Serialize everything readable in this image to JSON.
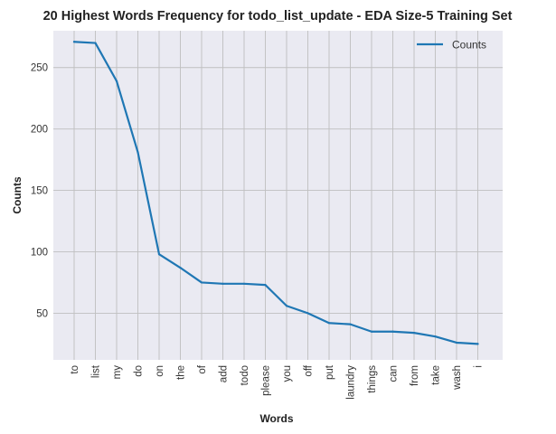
{
  "chart_data": {
    "type": "line",
    "title": "20 Highest Words Frequency for todo_list_update - EDA Size-5 Training Set",
    "xlabel": "Words",
    "ylabel": "Counts",
    "categories": [
      "to",
      "list",
      "my",
      "do",
      "on",
      "the",
      "of",
      "add",
      "todo",
      "please",
      "you",
      "off",
      "put",
      "laundry",
      "things",
      "can",
      "from",
      "take",
      "wash",
      "i"
    ],
    "series": [
      {
        "name": "Counts",
        "values": [
          271,
          270,
          239,
          181,
          98,
          87,
          75,
          74,
          74,
          73,
          56,
          50,
          42,
          41,
          35,
          35,
          34,
          31,
          26,
          25
        ],
        "color": "#1f77b4"
      }
    ],
    "ylim": [
      12,
      280
    ],
    "yticks": [
      50,
      100,
      150,
      200,
      250
    ],
    "grid": true,
    "legend_position": "top-right",
    "background_color": "#eaeaf2",
    "grid_color": "#bfbfbf"
  }
}
